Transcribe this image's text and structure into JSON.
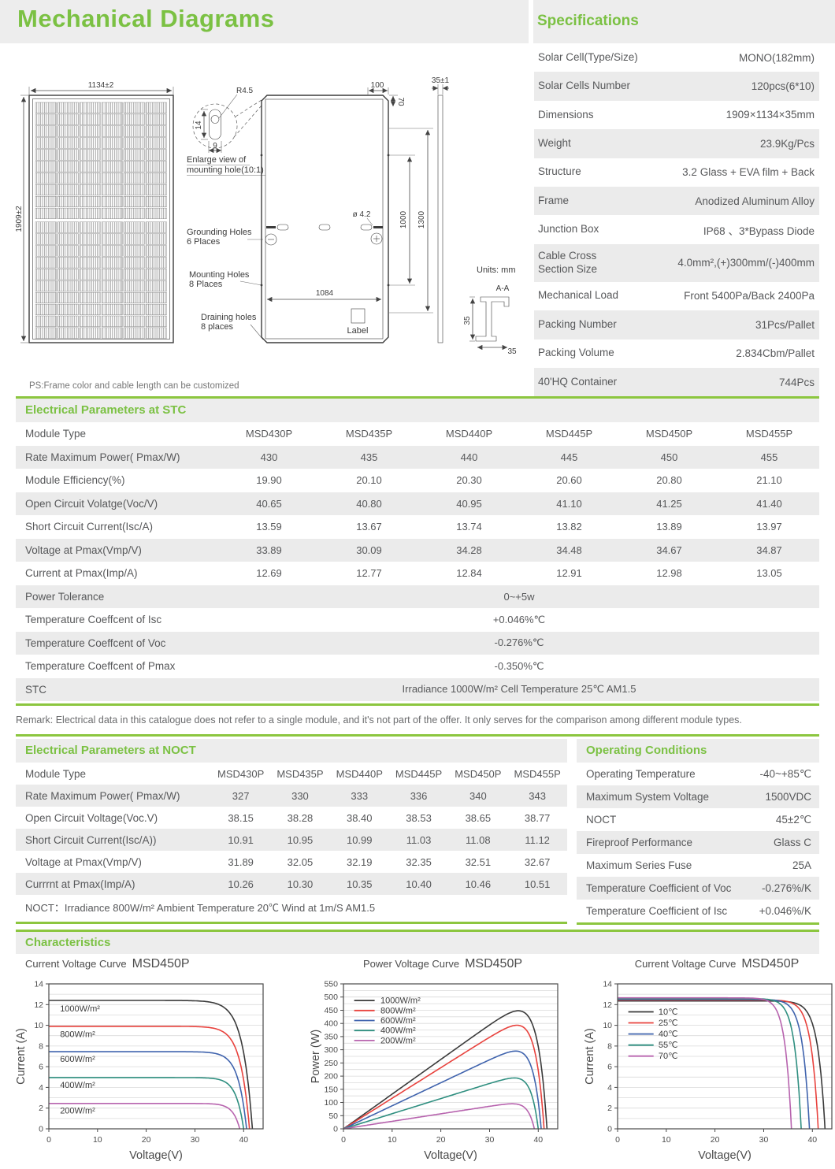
{
  "header": {
    "title": "Mechanical Diagrams"
  },
  "specifications": {
    "title": "Specifications",
    "rows": [
      {
        "label": "Solar Cell(Type/Size)",
        "value": "MONO(182mm)"
      },
      {
        "label": "Solar Cells Number",
        "value": "120pcs(6*10)"
      },
      {
        "label": "Dimensions",
        "value": "1909×1134×35mm"
      },
      {
        "label": "Weight",
        "value": "23.9Kg/Pcs"
      },
      {
        "label": "Structure",
        "value": "3.2 Glass + EVA film + Back"
      },
      {
        "label": "Frame",
        "value": "Anodized Aluminum Alloy"
      },
      {
        "label": "Junction Box",
        "value": "IP68 、3*Bypass Diode"
      },
      {
        "label": "Cable Cross\nSection Size",
        "value": "4.0mm²,(+)300mm/(-)400mm"
      },
      {
        "label": "Mechanical Load",
        "value": "Front 5400Pa/Back 2400Pa"
      },
      {
        "label": "Packing Number",
        "value": "31Pcs/Pallet"
      },
      {
        "label": "Packing Volume",
        "value": "2.834Cbm/Pallet"
      },
      {
        "label": "40'HQ Container",
        "value": "744Pcs"
      }
    ]
  },
  "mechanical": {
    "dim_width": "1134±2",
    "dim_height": "1909±2",
    "detail_r": "R4.5",
    "detail_14": "14",
    "detail_9": "9",
    "detail_caption_1": "Enlarge view of",
    "detail_caption_2": "mounting hole(10:1)",
    "grounding_1": "Grounding Holes",
    "grounding_2": "6 Places",
    "mounting_1": "Mounting Holes",
    "mounting_2": "8 Places",
    "draining_1": "Draining holes",
    "draining_2": "8 places",
    "back_dim_100": "100",
    "back_dim_70": "70",
    "hole_dia": "ø 4.2",
    "back_dim_1000": "1000",
    "back_dim_1300": "1300",
    "back_dim_1084": "1084",
    "label_box": "Label",
    "side_dim": "35±1",
    "units": "Units:  mm",
    "section_label": "A-A",
    "section_35_v": "35",
    "section_35_h": "35",
    "ps_note": "PS:Frame color and cable length can be customized"
  },
  "stc": {
    "title": "Electrical Parameters at STC",
    "module_row_label": "Module Type",
    "modules": [
      "MSD430P",
      "MSD435P",
      "MSD440P",
      "MSD445P",
      "MSD450P",
      "MSD455P"
    ],
    "rows": [
      {
        "label": "Rate Maximum Power( Pmax/W)",
        "values": [
          "430",
          "435",
          "440",
          "445",
          "450",
          "455"
        ]
      },
      {
        "label": "Module Efficiency(%)",
        "values": [
          "19.90",
          "20.10",
          "20.30",
          "20.60",
          "20.80",
          "21.10"
        ]
      },
      {
        "label": "Open Circuit Volatge(Voc/V)",
        "values": [
          "40.65",
          "40.80",
          "40.95",
          "41.10",
          "41.25",
          "41.40"
        ]
      },
      {
        "label": "Short Circuit Current(Isc/A)",
        "values": [
          "13.59",
          "13.67",
          "13.74",
          "13.82",
          "13.89",
          "13.97"
        ]
      },
      {
        "label": "Voltage at Pmax(Vmp/V)",
        "values": [
          "33.89",
          "30.09",
          "34.28",
          "34.48",
          "34.67",
          "34.87"
        ]
      },
      {
        "label": "Current at Pmax(Imp/A)",
        "values": [
          "12.69",
          "12.77",
          "12.84",
          "12.91",
          "12.98",
          "13.05"
        ]
      }
    ],
    "merged_rows": [
      {
        "label": "Power Tolerance",
        "value": "0~+5w"
      },
      {
        "label": "Temperature Coeffcent of Isc",
        "value": "+0.046%℃"
      },
      {
        "label": "Temperature Coeffcent of Voc",
        "value": "-0.276%℃"
      },
      {
        "label": "Temperature Coeffcent of Pmax",
        "value": "-0.350%℃"
      },
      {
        "label": "STC",
        "value": "Irradiance 1000W/m²  Cell Temperature 25℃  AM1.5"
      }
    ]
  },
  "remark": "Remark: Electrical data in this catalogue does not refer to a single module, and it's not part of the offer. It only serves for the comparison among different module types.",
  "noct": {
    "title": "Electrical Parameters at NOCT",
    "module_row_label": "Module Type",
    "modules": [
      "MSD430P",
      "MSD435P",
      "MSD440P",
      "MSD445P",
      "MSD450P",
      "MSD455P"
    ],
    "rows": [
      {
        "label": "Rate Maximum Power( Pmax/W)",
        "values": [
          "327",
          "330",
          "333",
          "336",
          "340",
          "343"
        ]
      },
      {
        "label": "Open Circuit Voltage(Voc.V)",
        "values": [
          "38.15",
          "38.28",
          "38.40",
          "38.53",
          "38.65",
          "38.77"
        ]
      },
      {
        "label": "Short Circuit Current(Isc/A))",
        "values": [
          "10.91",
          "10.95",
          "10.99",
          "11.03",
          "11.08",
          "11.12"
        ]
      },
      {
        "label": "Voltage at Pmax(Vmp/V)",
        "values": [
          "31.89",
          "32.05",
          "32.19",
          "32.35",
          "32.51",
          "32.67"
        ]
      },
      {
        "label": "Currrnt at Pmax(Imp/A)",
        "values": [
          "10.26",
          "10.30",
          "10.35",
          "10.40",
          "10.46",
          "10.51"
        ]
      }
    ],
    "footnote": "NOCT：Irradiance 800W/m²  Ambient Temperature 20℃  Wind at 1m/S  AM1.5"
  },
  "operating": {
    "title": "Operating Conditions",
    "rows": [
      {
        "label": "Operating Temperature",
        "value": "-40~+85℃"
      },
      {
        "label": "Maximum System Voltage",
        "value": "1500VDC"
      },
      {
        "label": "NOCT",
        "value": "45±2℃"
      },
      {
        "label": "Fireproof  Performance",
        "value": "Glass C"
      },
      {
        "label": "Maximum Series Fuse",
        "value": "25A"
      },
      {
        "label": "Temperature Coefficient of Voc",
        "value": "-0.276%/K"
      },
      {
        "label": "Temperature Coefficient of Isc",
        "value": "+0.046%/K"
      }
    ]
  },
  "characteristics": {
    "title": "Characteristics"
  },
  "colors": {
    "accent_text": "#7bc143",
    "accent_border": "#8cc63f",
    "band_bg": "#ededed",
    "row_alt": "#ebebeb"
  },
  "chart_data": [
    {
      "type": "line",
      "subtype": "iv",
      "title": "Current Voltage Curve",
      "model": "MSD450P",
      "xlabel": "Voltage(V)",
      "ylabel": "Current (A)",
      "xlim": [
        0,
        44
      ],
      "ylim": [
        0,
        14
      ],
      "xticks": [
        0,
        10,
        20,
        30,
        40
      ],
      "yticks": [
        0,
        2,
        4,
        6,
        8,
        10,
        12,
        14
      ],
      "grid_step": 1,
      "legend_mode": "inline",
      "series": [
        {
          "name": "1000W/m²",
          "color": "#3a3a3a",
          "isc": 12.4,
          "voc": 41.8,
          "a": 2.0,
          "label_x": 2.3,
          "label_y": 11.35
        },
        {
          "name": "800W/m²",
          "color": "#e8423d",
          "isc": 9.9,
          "voc": 41.2,
          "a": 1.85,
          "label_x": 2.3,
          "label_y": 8.85
        },
        {
          "name": "600W/m²",
          "color": "#3f63ad",
          "isc": 7.45,
          "voc": 40.6,
          "a": 1.7,
          "label_x": 2.3,
          "label_y": 6.45
        },
        {
          "name": "400W/m²",
          "color": "#2f8f80",
          "isc": 4.95,
          "voc": 40.0,
          "a": 1.55,
          "label_x": 2.3,
          "label_y": 3.95
        },
        {
          "name": "200W/m²",
          "color": "#b763ae",
          "isc": 2.45,
          "voc": 39.2,
          "a": 1.4,
          "label_x": 2.3,
          "label_y": 1.5
        }
      ]
    },
    {
      "type": "line",
      "subtype": "pv",
      "title": "Power Voltage Curve",
      "model": "MSD450P",
      "xlabel": "Voltage(V)",
      "ylabel": "Power (W)",
      "xlim": [
        0,
        44
      ],
      "ylim": [
        0,
        550
      ],
      "xticks": [
        0,
        10,
        20,
        30,
        40
      ],
      "yticks": [
        0,
        50,
        100,
        150,
        200,
        250,
        300,
        350,
        400,
        450,
        500,
        550
      ],
      "grid_step": 25,
      "legend_mode": "box",
      "legend": {
        "x": 2.2,
        "y": 487,
        "dy": 38,
        "len": 4.2,
        "tx": 7.6
      },
      "series": [
        {
          "name": "1000W/m²",
          "color": "#3a3a3a",
          "isc": 12.4,
          "voc": 41.8,
          "a": 2.0,
          "pmax": 448
        },
        {
          "name": "800W/m²",
          "color": "#e8423d",
          "isc": 9.9,
          "voc": 41.2,
          "a": 1.85,
          "pmax": 393
        },
        {
          "name": "600W/m²",
          "color": "#3f63ad",
          "isc": 7.45,
          "voc": 40.6,
          "a": 1.7,
          "pmax": 295
        },
        {
          "name": "400W/m²",
          "color": "#2f8f80",
          "isc": 4.95,
          "voc": 40.0,
          "a": 1.55,
          "pmax": 193
        },
        {
          "name": "200W/m²",
          "color": "#b763ae",
          "isc": 2.45,
          "voc": 39.2,
          "a": 1.4,
          "pmax": 95
        }
      ]
    },
    {
      "type": "line",
      "subtype": "iv",
      "title": "Current Voltage Curve",
      "model": "MSD450P",
      "xlabel": "Voltage(V)",
      "ylabel": "Current (A)",
      "xlim": [
        0,
        44
      ],
      "ylim": [
        0,
        14
      ],
      "xticks": [
        0,
        10,
        20,
        30,
        40
      ],
      "yticks": [
        0,
        2,
        4,
        6,
        8,
        10,
        12,
        14
      ],
      "grid_step": 1,
      "legend_mode": "box",
      "legend": {
        "x": 2.2,
        "y": 11.3,
        "dy": 1.07,
        "len": 5.2,
        "tx": 8.4
      },
      "series": [
        {
          "name": "10℃",
          "color": "#3a3a3a",
          "isc": 12.35,
          "voc": 42.6,
          "a": 1.5
        },
        {
          "name": "25℃",
          "color": "#e8423d",
          "isc": 12.45,
          "voc": 41.2,
          "a": 1.45
        },
        {
          "name": "40℃",
          "color": "#3f63ad",
          "isc": 12.5,
          "voc": 39.4,
          "a": 1.4
        },
        {
          "name": "55℃",
          "color": "#2f8f80",
          "isc": 12.58,
          "voc": 37.7,
          "a": 1.35
        },
        {
          "name": "70℃",
          "color": "#b763ae",
          "isc": 12.65,
          "voc": 35.7,
          "a": 1.3
        }
      ]
    }
  ]
}
